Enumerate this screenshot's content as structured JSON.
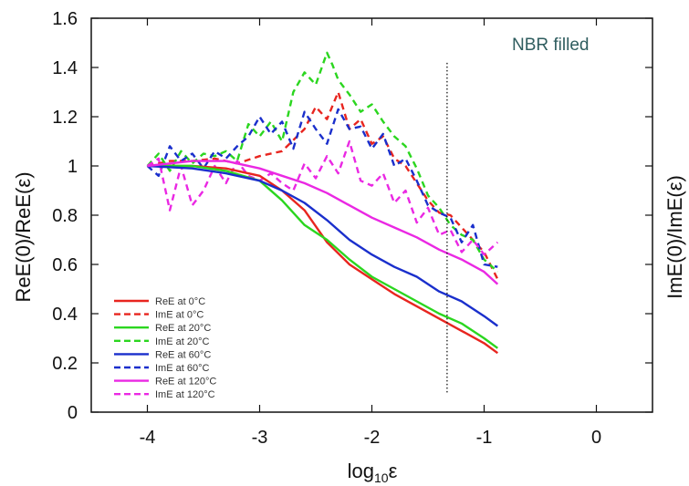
{
  "chart_data": {
    "type": "line",
    "annotation": "NBR filled",
    "xlabel_main": "log",
    "xlabel_sub": "10",
    "xlabel_tail": "ε",
    "ylabel_left": "ReE(0)/ReE(ε)",
    "ylabel_right": "ImE(0)/ImE(ε)",
    "xlim": [
      -4.5,
      0.5
    ],
    "ylim": [
      0,
      1.6
    ],
    "x_ticks": [
      -4,
      -3,
      -2,
      -1,
      0
    ],
    "y_ticks": [
      0,
      0.2,
      0.4,
      0.6,
      0.8,
      1,
      1.2,
      1.4,
      1.6
    ],
    "x_tick_labels": [
      "-4",
      "-3",
      "-2",
      "-1",
      "0"
    ],
    "y_tick_labels": [
      "0",
      "0.2",
      "0.4",
      "0.6",
      "0.8",
      "1",
      "1.2",
      "1.4",
      "1.6"
    ],
    "vertical_reference_line": {
      "x": -1.33,
      "style": "dotted",
      "y_range": [
        0.08,
        1.42
      ]
    },
    "legend_position": "lower-left",
    "series": [
      {
        "name": "ReE at 0°C",
        "color": "#e8251f",
        "dash": "solid",
        "x": [
          -4.0,
          -3.6,
          -3.3,
          -3.0,
          -2.8,
          -2.6,
          -2.4,
          -2.2,
          -2.0,
          -1.8,
          -1.6,
          -1.4,
          -1.2,
          -1.0,
          -0.88
        ],
        "y": [
          1.0,
          1.0,
          0.99,
          0.96,
          0.9,
          0.82,
          0.69,
          0.6,
          0.54,
          0.48,
          0.43,
          0.38,
          0.33,
          0.28,
          0.24
        ]
      },
      {
        "name": "ImE at 0°C",
        "color": "#e8251f",
        "dash": "dashed",
        "x": [
          -4.0,
          -3.8,
          -3.6,
          -3.4,
          -3.2,
          -3.0,
          -2.8,
          -2.6,
          -2.5,
          -2.4,
          -2.3,
          -2.2,
          -2.1,
          -2.0,
          -1.9,
          -1.8,
          -1.7,
          -1.6,
          -1.5,
          -1.4,
          -1.3,
          -1.2,
          -1.1,
          -1.0,
          -0.88
        ],
        "y": [
          1.0,
          1.02,
          1.02,
          1.03,
          1.01,
          1.04,
          1.06,
          1.15,
          1.24,
          1.19,
          1.3,
          1.15,
          1.19,
          1.09,
          1.12,
          1.03,
          1.0,
          0.93,
          0.86,
          0.81,
          0.8,
          0.75,
          0.7,
          0.65,
          0.54
        ]
      },
      {
        "name": "ReE at 20°C",
        "color": "#2bd61f",
        "dash": "solid",
        "x": [
          -4.0,
          -3.6,
          -3.3,
          -3.0,
          -2.8,
          -2.6,
          -2.4,
          -2.2,
          -2.0,
          -1.8,
          -1.6,
          -1.4,
          -1.2,
          -1.0,
          -0.88
        ],
        "y": [
          1.0,
          1.0,
          0.98,
          0.94,
          0.86,
          0.76,
          0.7,
          0.62,
          0.55,
          0.5,
          0.45,
          0.4,
          0.36,
          0.3,
          0.26
        ]
      },
      {
        "name": "ImE at 20°C",
        "color": "#2bd61f",
        "dash": "dashed",
        "x": [
          -4.0,
          -3.9,
          -3.8,
          -3.7,
          -3.6,
          -3.5,
          -3.4,
          -3.3,
          -3.2,
          -3.1,
          -3.0,
          -2.9,
          -2.8,
          -2.7,
          -2.6,
          -2.5,
          -2.4,
          -2.35,
          -2.3,
          -2.2,
          -2.1,
          -2.0,
          -1.9,
          -1.8,
          -1.7,
          -1.6,
          -1.5,
          -1.4,
          -1.3,
          -1.2,
          -1.1,
          -1.0,
          -0.88
        ],
        "y": [
          1.0,
          1.05,
          0.98,
          1.06,
          1.01,
          1.05,
          1.04,
          1.06,
          1.02,
          1.17,
          1.12,
          1.18,
          1.1,
          1.3,
          1.38,
          1.33,
          1.46,
          1.41,
          1.35,
          1.29,
          1.22,
          1.25,
          1.18,
          1.12,
          1.08,
          0.99,
          0.88,
          0.83,
          0.76,
          0.72,
          0.7,
          0.62,
          0.57
        ]
      },
      {
        "name": "ReE at 60°C",
        "color": "#1a2fcc",
        "dash": "solid",
        "x": [
          -4.0,
          -3.6,
          -3.3,
          -3.0,
          -2.8,
          -2.6,
          -2.4,
          -2.2,
          -2.0,
          -1.8,
          -1.6,
          -1.4,
          -1.2,
          -1.0,
          -0.88
        ],
        "y": [
          1.0,
          0.99,
          0.97,
          0.94,
          0.9,
          0.85,
          0.78,
          0.7,
          0.64,
          0.59,
          0.55,
          0.49,
          0.45,
          0.39,
          0.35
        ]
      },
      {
        "name": "ImE at 60°C",
        "color": "#1a2fcc",
        "dash": "dashed",
        "x": [
          -4.0,
          -3.9,
          -3.8,
          -3.7,
          -3.6,
          -3.5,
          -3.4,
          -3.3,
          -3.2,
          -3.1,
          -3.0,
          -2.9,
          -2.8,
          -2.7,
          -2.6,
          -2.5,
          -2.4,
          -2.3,
          -2.2,
          -2.1,
          -2.0,
          -1.9,
          -1.8,
          -1.7,
          -1.6,
          -1.5,
          -1.4,
          -1.3,
          -1.2,
          -1.1,
          -1.0,
          -0.88
        ],
        "y": [
          1.0,
          0.96,
          1.08,
          1.02,
          1.05,
          0.99,
          1.06,
          1.03,
          1.08,
          1.12,
          1.2,
          1.13,
          1.18,
          1.07,
          1.22,
          1.15,
          1.09,
          1.23,
          1.15,
          1.16,
          1.07,
          1.13,
          1.0,
          1.03,
          0.94,
          0.84,
          0.81,
          0.79,
          0.69,
          0.76,
          0.6,
          0.59
        ]
      },
      {
        "name": "ReE at 120°C",
        "color": "#ea28e3",
        "dash": "solid",
        "x": [
          -4.0,
          -3.6,
          -3.3,
          -3.0,
          -2.8,
          -2.6,
          -2.4,
          -2.2,
          -2.0,
          -1.8,
          -1.6,
          -1.4,
          -1.2,
          -1.0,
          -0.88
        ],
        "y": [
          1.0,
          1.02,
          1.02,
          0.99,
          0.96,
          0.93,
          0.89,
          0.84,
          0.79,
          0.75,
          0.71,
          0.66,
          0.62,
          0.57,
          0.52
        ]
      },
      {
        "name": "ImE at 120°C",
        "color": "#ea28e3",
        "dash": "dashed",
        "x": [
          -4.0,
          -3.9,
          -3.8,
          -3.7,
          -3.6,
          -3.5,
          -3.4,
          -3.3,
          -3.2,
          -3.1,
          -3.0,
          -2.9,
          -2.8,
          -2.7,
          -2.6,
          -2.5,
          -2.4,
          -2.3,
          -2.2,
          -2.1,
          -2.0,
          -1.9,
          -1.8,
          -1.7,
          -1.6,
          -1.5,
          -1.4,
          -1.3,
          -1.2,
          -1.1,
          -1.0,
          -0.88
        ],
        "y": [
          1.0,
          1.03,
          0.82,
          1.0,
          0.84,
          0.9,
          1.0,
          0.93,
          1.02,
          0.96,
          0.94,
          0.97,
          0.93,
          0.9,
          1.01,
          0.95,
          1.04,
          0.97,
          1.1,
          0.94,
          0.92,
          0.97,
          0.85,
          0.9,
          0.77,
          0.83,
          0.72,
          0.74,
          0.65,
          0.7,
          0.64,
          0.69
        ]
      }
    ]
  }
}
